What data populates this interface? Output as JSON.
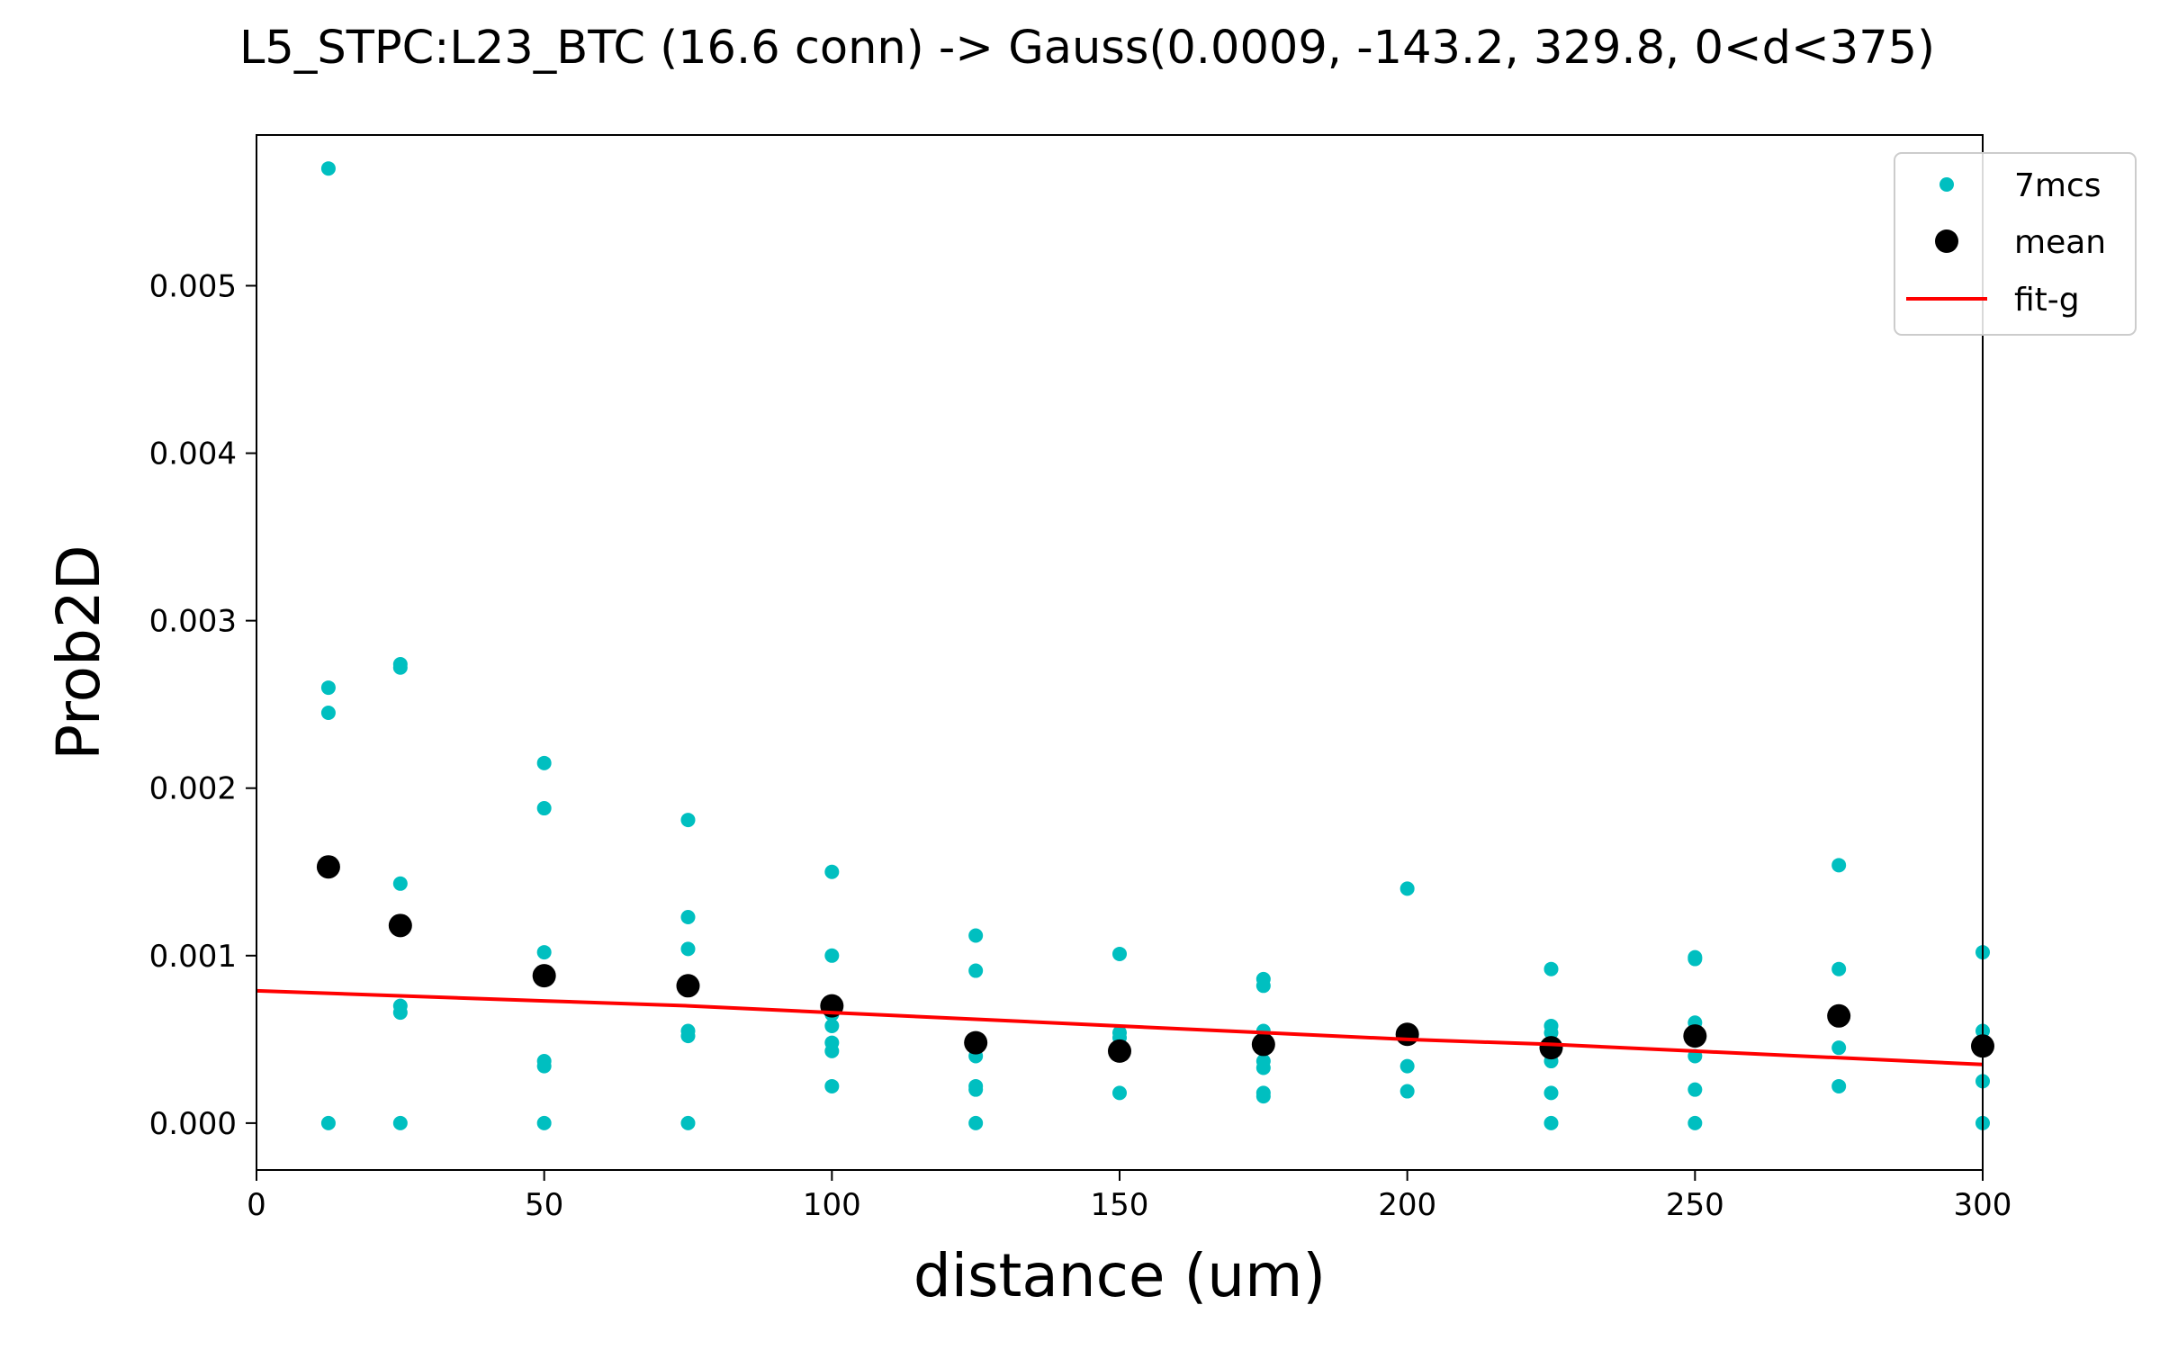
{
  "chart_data": {
    "type": "scatter",
    "title": "L5_STPC:L23_BTC (16.6 conn) -> Gauss(0.0009, -143.2, 329.8, 0<d<375)",
    "xlabel": "distance (um)",
    "ylabel": "Prob2D",
    "xlim": [
      0,
      300
    ],
    "ylim": [
      -0.00028,
      0.0059
    ],
    "xticks": [
      0,
      50,
      100,
      150,
      200,
      250,
      300
    ],
    "xtick_labels": [
      "0",
      "50",
      "100",
      "150",
      "200",
      "250",
      "300"
    ],
    "yticks": [
      0,
      0.001,
      0.002,
      0.003,
      0.004,
      0.005
    ],
    "ytick_labels": [
      "0.000",
      "0.001",
      "0.002",
      "0.003",
      "0.004",
      "0.005"
    ],
    "grid": false,
    "legend_position": "top-right",
    "colors": {
      "samples": "#00bfc0",
      "mean": "#000000",
      "fit": "#ff0000"
    },
    "legend": [
      {
        "label": "7mcs",
        "kind": "small-dot",
        "color": "#00bfc0"
      },
      {
        "label": "mean",
        "kind": "large-dot",
        "color": "#000000"
      },
      {
        "label": "fit-g",
        "kind": "line",
        "color": "#ff0000"
      }
    ],
    "series": [
      {
        "name": "7mcs",
        "kind": "scatter",
        "points": [
          [
            12.5,
            0.0057
          ],
          [
            12.5,
            0.0026
          ],
          [
            12.5,
            0.00245
          ],
          [
            12.5,
            0.0
          ],
          [
            25,
            0.00274
          ],
          [
            25,
            0.00272
          ],
          [
            25,
            0.00143
          ],
          [
            25,
            0.0007
          ],
          [
            25,
            0.00066
          ],
          [
            25,
            0.0
          ],
          [
            50,
            0.00215
          ],
          [
            50,
            0.00188
          ],
          [
            50,
            0.00102
          ],
          [
            50,
            0.00037
          ],
          [
            50,
            0.00034
          ],
          [
            50,
            0.0
          ],
          [
            75,
            0.00181
          ],
          [
            75,
            0.00123
          ],
          [
            75,
            0.00104
          ],
          [
            75,
            0.00055
          ],
          [
            75,
            0.00052
          ],
          [
            75,
            0.0
          ],
          [
            100,
            0.0015
          ],
          [
            100,
            0.001
          ],
          [
            100,
            0.00065
          ],
          [
            100,
            0.00058
          ],
          [
            100,
            0.00048
          ],
          [
            100,
            0.00043
          ],
          [
            100,
            0.00022
          ],
          [
            125,
            0.00112
          ],
          [
            125,
            0.00091
          ],
          [
            125,
            0.0005
          ],
          [
            125,
            0.0004
          ],
          [
            125,
            0.00022
          ],
          [
            125,
            0.0002
          ],
          [
            125,
            0.0
          ],
          [
            150,
            0.00101
          ],
          [
            150,
            0.00054
          ],
          [
            150,
            0.00051
          ],
          [
            150,
            0.00042
          ],
          [
            150,
            0.00018
          ],
          [
            175,
            0.00086
          ],
          [
            175,
            0.00082
          ],
          [
            175,
            0.00055
          ],
          [
            175,
            0.00037
          ],
          [
            175,
            0.00033
          ],
          [
            175,
            0.00018
          ],
          [
            175,
            0.00016
          ],
          [
            200,
            0.0014
          ],
          [
            200,
            0.00054
          ],
          [
            200,
            0.00034
          ],
          [
            200,
            0.00019
          ],
          [
            225,
            0.00092
          ],
          [
            225,
            0.00058
          ],
          [
            225,
            0.00054
          ],
          [
            225,
            0.00037
          ],
          [
            225,
            0.00018
          ],
          [
            225,
            0.0
          ],
          [
            250,
            0.00099
          ],
          [
            250,
            0.00098
          ],
          [
            250,
            0.0006
          ],
          [
            250,
            0.0004
          ],
          [
            250,
            0.0002
          ],
          [
            250,
            0.0
          ],
          [
            275,
            0.00154
          ],
          [
            275,
            0.00092
          ],
          [
            275,
            0.00045
          ],
          [
            275,
            0.00022
          ],
          [
            300,
            0.00102
          ],
          [
            300,
            0.00055
          ],
          [
            300,
            0.00045
          ],
          [
            300,
            0.00025
          ],
          [
            300,
            0.0
          ]
        ]
      },
      {
        "name": "mean",
        "kind": "scatter",
        "points": [
          [
            12.5,
            0.00153
          ],
          [
            25,
            0.00118
          ],
          [
            50,
            0.00088
          ],
          [
            75,
            0.00082
          ],
          [
            100,
            0.0007
          ],
          [
            125,
            0.00048
          ],
          [
            150,
            0.00043
          ],
          [
            175,
            0.00047
          ],
          [
            200,
            0.00053
          ],
          [
            225,
            0.00045
          ],
          [
            250,
            0.00052
          ],
          [
            275,
            0.00064
          ],
          [
            300,
            0.00046
          ]
        ]
      },
      {
        "name": "fit-g",
        "kind": "line",
        "points": [
          [
            0,
            0.00079
          ],
          [
            25,
            0.00076
          ],
          [
            50,
            0.00073
          ],
          [
            75,
            0.0007
          ],
          [
            100,
            0.00066
          ],
          [
            125,
            0.00062
          ],
          [
            150,
            0.00058
          ],
          [
            175,
            0.00054
          ],
          [
            200,
            0.0005
          ],
          [
            225,
            0.00047
          ],
          [
            250,
            0.00043
          ],
          [
            275,
            0.00039
          ],
          [
            300,
            0.00035
          ]
        ]
      }
    ]
  }
}
